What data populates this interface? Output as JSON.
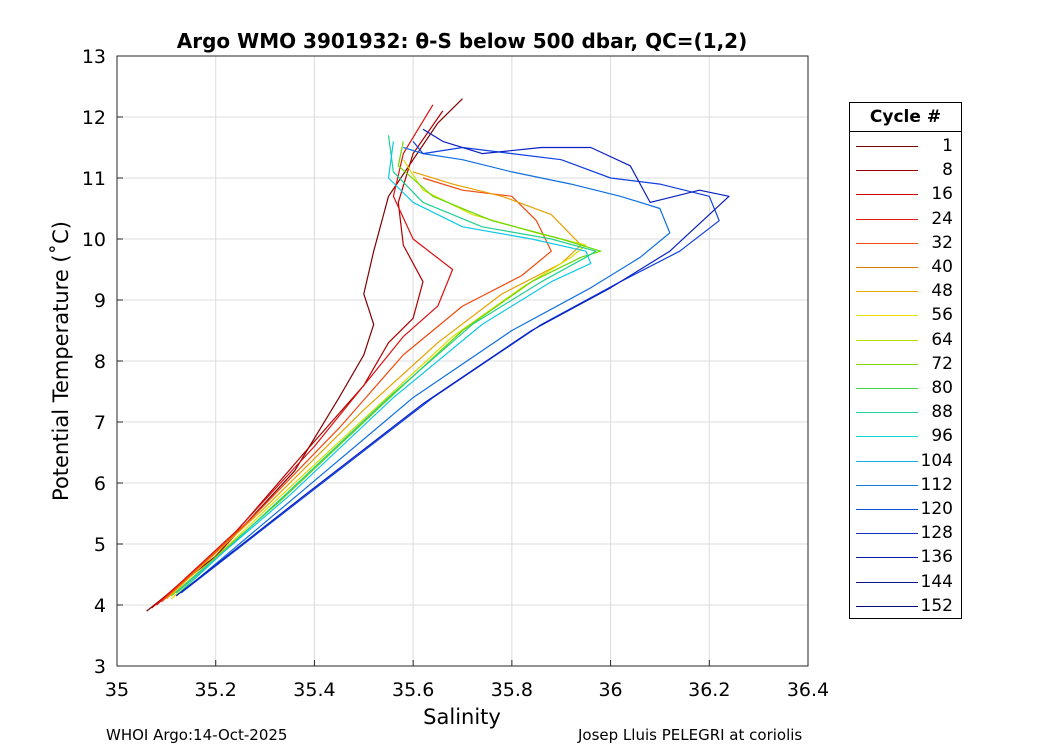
{
  "chart_data": {
    "type": "line",
    "title": "Argo WMO 3901932: θ-S below 500 dbar,  QC=(1,2)",
    "xlabel": "Salinity",
    "ylabel": "Potential Temperature (˚C)",
    "xlim": [
      35,
      36.4
    ],
    "ylim": [
      3,
      13
    ],
    "xticks": [
      "35",
      "35.2",
      "35.4",
      "35.6",
      "35.8",
      "36",
      "36.2",
      "36.4"
    ],
    "yticks": [
      "3",
      "4",
      "5",
      "6",
      "7",
      "8",
      "9",
      "10",
      "11",
      "12",
      "13"
    ],
    "grid": true,
    "legend": {
      "title": "Cycle #",
      "placement": "right",
      "entries": [
        {
          "label": "1",
          "color": "#7f0000"
        },
        {
          "label": "8",
          "color": "#a00000"
        },
        {
          "label": "16",
          "color": "#cc0000"
        },
        {
          "label": "24",
          "color": "#e31a1c"
        },
        {
          "label": "32",
          "color": "#f04a0e"
        },
        {
          "label": "40",
          "color": "#e07b00"
        },
        {
          "label": "48",
          "color": "#f0a800"
        },
        {
          "label": "56",
          "color": "#e8e000"
        },
        {
          "label": "64",
          "color": "#b0e000"
        },
        {
          "label": "72",
          "color": "#7ad800"
        },
        {
          "label": "80",
          "color": "#3cd840"
        },
        {
          "label": "88",
          "color": "#20d0a0"
        },
        {
          "label": "96",
          "color": "#10d8d8"
        },
        {
          "label": "104",
          "color": "#10b0e8"
        },
        {
          "label": "112",
          "color": "#1080d8"
        },
        {
          "label": "120",
          "color": "#1050e0"
        },
        {
          "label": "128",
          "color": "#1030c8"
        },
        {
          "label": "136",
          "color": "#0a1cb0"
        },
        {
          "label": "144",
          "color": "#08128f"
        },
        {
          "label": "152",
          "color": "#000a80"
        }
      ]
    },
    "series": [
      {
        "color": "#7f0000",
        "x": [
          35.06,
          35.2,
          35.36,
          35.45,
          35.5,
          35.52,
          35.5,
          35.52,
          35.55,
          35.6,
          35.65,
          35.7
        ],
        "y": [
          3.9,
          4.8,
          6.2,
          7.4,
          8.1,
          8.6,
          9.1,
          9.8,
          10.7,
          11.3,
          11.9,
          12.3
        ]
      },
      {
        "color": "#b00000",
        "x": [
          35.07,
          35.22,
          35.38,
          35.5,
          35.55,
          35.6,
          35.62,
          35.58,
          35.57,
          35.6,
          35.66
        ],
        "y": [
          3.95,
          5.0,
          6.5,
          7.6,
          8.3,
          8.7,
          9.3,
          9.9,
          10.6,
          11.4,
          12.1
        ]
      },
      {
        "color": "#dd1010",
        "x": [
          35.08,
          35.24,
          35.4,
          35.52,
          35.58,
          35.65,
          35.68,
          35.6,
          35.56,
          35.58,
          35.64
        ],
        "y": [
          4.0,
          5.2,
          6.6,
          7.8,
          8.4,
          8.9,
          9.5,
          10.0,
          10.7,
          11.4,
          12.2
        ]
      },
      {
        "color": "#f04a0e",
        "x": [
          35.09,
          35.27,
          35.45,
          35.58,
          35.7,
          35.82,
          35.88,
          35.85,
          35.8,
          35.7,
          35.62
        ],
        "y": [
          4.05,
          5.4,
          6.9,
          8.1,
          8.9,
          9.4,
          9.8,
          10.3,
          10.7,
          10.8,
          11.0
        ]
      },
      {
        "color": "#e8a000",
        "x": [
          35.1,
          35.3,
          35.5,
          35.65,
          35.78,
          35.9,
          35.94,
          35.88,
          35.78,
          35.68,
          35.6
        ],
        "y": [
          4.1,
          5.6,
          7.2,
          8.3,
          9.1,
          9.6,
          9.9,
          10.4,
          10.7,
          10.9,
          11.1
        ]
      },
      {
        "color": "#d8e000",
        "x": [
          35.11,
          35.32,
          35.52,
          35.68,
          35.82,
          35.92,
          35.95,
          35.85,
          35.72,
          35.62,
          35.58
        ],
        "y": [
          4.1,
          5.7,
          7.2,
          8.4,
          9.2,
          9.7,
          9.9,
          10.1,
          10.4,
          10.8,
          11.3
        ]
      },
      {
        "color": "#6ad800",
        "x": [
          35.11,
          35.33,
          35.54,
          35.7,
          35.84,
          35.94,
          35.98,
          35.9,
          35.76,
          35.64,
          35.57,
          35.58
        ],
        "y": [
          4.15,
          5.7,
          7.3,
          8.5,
          9.3,
          9.7,
          9.8,
          10.0,
          10.3,
          10.7,
          11.2,
          11.6
        ]
      },
      {
        "color": "#20d090",
        "x": [
          35.12,
          35.34,
          35.55,
          35.72,
          35.86,
          35.95,
          35.97,
          35.88,
          35.74,
          35.62,
          35.56,
          35.55
        ],
        "y": [
          4.15,
          5.8,
          7.4,
          8.6,
          9.3,
          9.7,
          9.8,
          10.0,
          10.2,
          10.6,
          11.1,
          11.7
        ]
      },
      {
        "color": "#10c8e8",
        "x": [
          35.12,
          35.35,
          35.56,
          35.74,
          35.88,
          35.96,
          35.95,
          35.84,
          35.7,
          35.6,
          35.55,
          35.56
        ],
        "y": [
          4.2,
          5.8,
          7.4,
          8.6,
          9.3,
          9.6,
          9.8,
          10.0,
          10.2,
          10.6,
          11.0,
          11.6
        ]
      },
      {
        "color": "#1070e0",
        "x": [
          35.13,
          35.38,
          35.6,
          35.8,
          35.96,
          36.06,
          36.12,
          36.1,
          36.02,
          35.92,
          35.8,
          35.7,
          35.62,
          35.58
        ],
        "y": [
          4.2,
          5.9,
          7.4,
          8.5,
          9.2,
          9.7,
          10.1,
          10.5,
          10.7,
          10.9,
          11.1,
          11.3,
          11.4,
          11.5
        ]
      },
      {
        "color": "#1040e0",
        "x": [
          35.13,
          35.4,
          35.64,
          35.86,
          36.02,
          36.14,
          36.22,
          36.2,
          36.1,
          36.0,
          35.9,
          35.8,
          35.7,
          35.62,
          35.6
        ],
        "y": [
          4.2,
          5.9,
          7.4,
          8.6,
          9.3,
          9.8,
          10.3,
          10.7,
          10.9,
          11.0,
          11.3,
          11.4,
          11.5,
          11.4,
          11.6
        ]
      },
      {
        "color": "#0a20c0",
        "x": [
          35.12,
          35.38,
          35.62,
          35.84,
          36.0,
          36.12,
          36.24,
          36.18,
          36.08,
          36.04,
          35.96,
          35.86,
          35.74,
          35.66,
          35.62
        ],
        "y": [
          4.15,
          5.8,
          7.3,
          8.5,
          9.2,
          9.8,
          10.7,
          10.8,
          10.6,
          11.2,
          11.5,
          11.5,
          11.4,
          11.6,
          11.8
        ]
      }
    ]
  },
  "footer": {
    "left": "WHOI Argo:14-Oct-2025",
    "right": "Josep Lluis PELEGRI at coriolis"
  }
}
